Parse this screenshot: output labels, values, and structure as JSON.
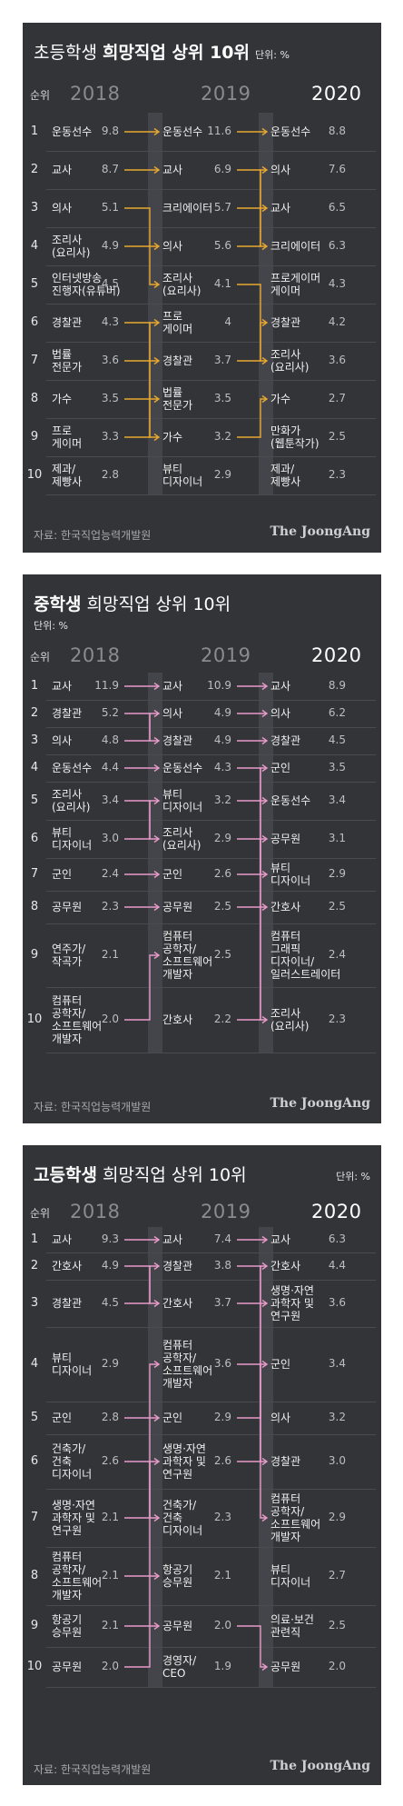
{
  "chart_data": [
    {
      "type": "table",
      "title_bold": "희망직업 상위 10위",
      "title_plain": "초등학생",
      "title_order": "plain-bold",
      "unit": "단위: %",
      "rank_label": "순위",
      "years": [
        "2018",
        "2019",
        "2020"
      ],
      "columns": [
        [
          [
            "운동선수",
            "9.8"
          ],
          [
            "교사",
            "8.7"
          ],
          [
            "의사",
            "5.1"
          ],
          [
            "조리사\n(요리사)",
            "4.9"
          ],
          [
            "인터넷방송\n진행자(유튜버)",
            "4.5"
          ],
          [
            "경찰관",
            "4.3"
          ],
          [
            "법률\n전문가",
            "3.6"
          ],
          [
            "가수",
            "3.5"
          ],
          [
            "프로\n게이머",
            "3.3"
          ],
          [
            "제과/\n제빵사",
            "2.8"
          ]
        ],
        [
          [
            "운동선수",
            "11.6"
          ],
          [
            "교사",
            "6.9"
          ],
          [
            "크리에이터",
            "5.7"
          ],
          [
            "의사",
            "5.6"
          ],
          [
            "조리사\n(요리사)",
            "4.1"
          ],
          [
            "프로\n게이머",
            "4"
          ],
          [
            "경찰관",
            "3.7"
          ],
          [
            "법률\n전문가",
            "3.5"
          ],
          [
            "가수",
            "3.2"
          ],
          [
            "뷰티\n디자이너",
            "2.9"
          ]
        ],
        [
          [
            "운동선수",
            "8.8"
          ],
          [
            "의사",
            "7.6"
          ],
          [
            "교사",
            "6.5"
          ],
          [
            "크리에이터",
            "6.3"
          ],
          [
            "프로게이머\n게이머",
            "4.3"
          ],
          [
            "경찰관",
            "4.2"
          ],
          [
            "조리사\n(요리사)",
            "3.6"
          ],
          [
            "가수",
            "2.7"
          ],
          [
            "만화가\n(웹툰작가)",
            "2.5"
          ],
          [
            "제과/\n제빵사",
            "2.3"
          ]
        ]
      ],
      "source": "자료: 한국직업능력개발원",
      "brand": "The JoongAng"
    },
    {
      "type": "table",
      "title_bold": "중학생",
      "title_plain": "희망직업 상위 10위",
      "title_order": "bold-plain",
      "unit": "단위: %",
      "rank_label": "순위",
      "years": [
        "2018",
        "2019",
        "2020"
      ],
      "columns": [
        [
          [
            "교사",
            "11.9"
          ],
          [
            "경찰관",
            "5.2"
          ],
          [
            "의사",
            "4.8"
          ],
          [
            "운동선수",
            "4.4"
          ],
          [
            "조리사\n(요리사)",
            "3.4"
          ],
          [
            "뷰티\n디자이너",
            "3.0"
          ],
          [
            "군인",
            "2.4"
          ],
          [
            "공무원",
            "2.3"
          ],
          [
            "연주가/\n작곡가",
            "2.1"
          ],
          [
            "컴퓨터\n공학자/\n소프트웨어\n개발자",
            "2.0"
          ]
        ],
        [
          [
            "교사",
            "10.9"
          ],
          [
            "의사",
            "4.9"
          ],
          [
            "경찰관",
            "4.9"
          ],
          [
            "운동선수",
            "4.3"
          ],
          [
            "뷰티\n디자이너",
            "3.2"
          ],
          [
            "조리사\n(요리사)",
            "2.9"
          ],
          [
            "군인",
            "2.6"
          ],
          [
            "공무원",
            "2.5"
          ],
          [
            "컴퓨터\n공학자/\n소프트웨어\n개발자",
            "2.5"
          ],
          [
            "간호사",
            "2.2"
          ]
        ],
        [
          [
            "교사",
            "8.9"
          ],
          [
            "의사",
            "6.2"
          ],
          [
            "경찰관",
            "4.5"
          ],
          [
            "군인",
            "3.5"
          ],
          [
            "운동선수",
            "3.4"
          ],
          [
            "공무원",
            "3.1"
          ],
          [
            "뷰티\n디자이너",
            "2.9"
          ],
          [
            "간호사",
            "2.5"
          ],
          [
            "컴퓨터\n그래픽\n디자이너/\n일러스트레이터",
            "2.4"
          ],
          [
            "조리사\n(요리사)",
            "2.3"
          ]
        ]
      ],
      "source": "자료: 한국직업능력개발원",
      "brand": "The JoongAng"
    },
    {
      "type": "table",
      "title_bold": "고등학생",
      "title_plain": "희망직업 상위 10위",
      "title_order": "bold-plain",
      "unit": "단위: %",
      "rank_label": "순위",
      "years": [
        "2018",
        "2019",
        "2020"
      ],
      "columns": [
        [
          [
            "교사",
            "9.3"
          ],
          [
            "간호사",
            "4.9"
          ],
          [
            "경찰관",
            "4.5"
          ],
          [
            "뷰티\n디자이너",
            "2.9"
          ],
          [
            "군인",
            "2.8"
          ],
          [
            "건축가/\n건축\n디자이너",
            "2.6"
          ],
          [
            "생명·자연\n과학자 및\n연구원",
            "2.1"
          ],
          [
            "컴퓨터\n공학자/\n소프트웨어\n개발자",
            "2.1"
          ],
          [
            "항공기\n승무원",
            "2.1"
          ],
          [
            "공무원",
            "2.0"
          ]
        ],
        [
          [
            "교사",
            "7.4"
          ],
          [
            "경찰관",
            "3.8"
          ],
          [
            "간호사",
            "3.7"
          ],
          [
            "컴퓨터\n공학자/\n소프트웨어\n개발자",
            "3.6"
          ],
          [
            "군인",
            "2.9"
          ],
          [
            "생명·자연\n과학자 및\n연구원",
            "2.6"
          ],
          [
            "건축가/\n건축\n디자이너",
            "2.3"
          ],
          [
            "항공기\n승무원",
            "2.1"
          ],
          [
            "공무원",
            "2.0"
          ],
          [
            "경영자/\nCEO",
            "1.9"
          ]
        ],
        [
          [
            "교사",
            "6.3"
          ],
          [
            "간호사",
            "4.4"
          ],
          [
            "생명·자연\n과학자 및\n연구원",
            "3.6"
          ],
          [
            "군인",
            "3.4"
          ],
          [
            "의사",
            "3.2"
          ],
          [
            "경찰관",
            "3.0"
          ],
          [
            "컴퓨터\n공학자/\n소프트웨어\n개발자",
            "2.9"
          ],
          [
            "뷰티\n디자이너",
            "2.7"
          ],
          [
            "의료·보건\n관련직",
            "2.5"
          ],
          [
            "공무원",
            "2.0"
          ]
        ]
      ],
      "source": "자료: 한국직업능력개발원",
      "brand": "The JoongAng"
    }
  ],
  "colors": {
    "background": "#333438",
    "elementary_arrow": "#e8a82e",
    "middle_arrow": "#e79ac9",
    "high_arrow": "#e79ac9",
    "current_year": "#ffffff",
    "past_year": "#8a8b90"
  }
}
